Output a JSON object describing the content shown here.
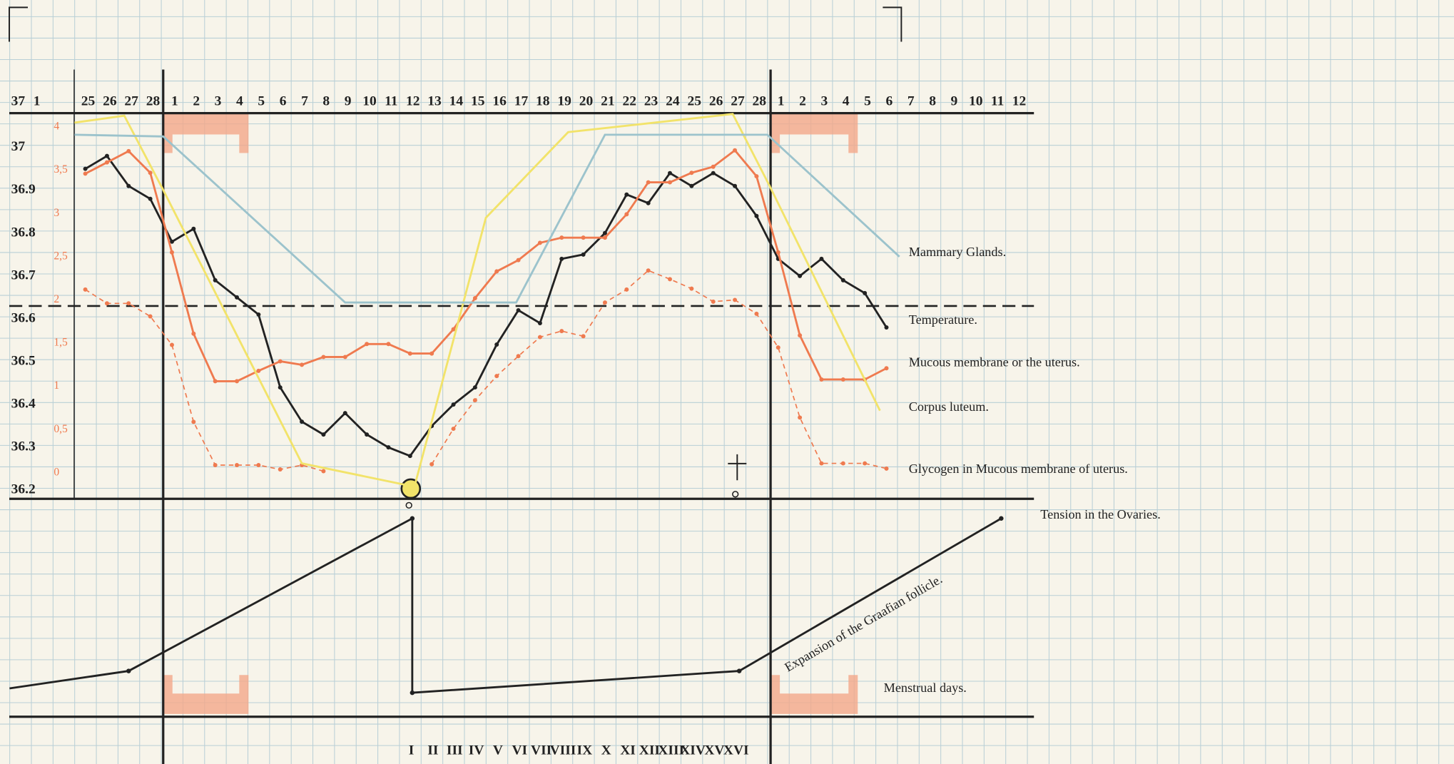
{
  "chart_data": [
    {
      "type": "line",
      "corner_labels": [
        "37",
        "1"
      ],
      "categories": [
        "25",
        "26",
        "27",
        "28",
        "1",
        "2",
        "3",
        "4",
        "5",
        "6",
        "7",
        "8",
        "9",
        "10",
        "11",
        "12",
        "13",
        "14",
        "15",
        "16",
        "17",
        "18",
        "19",
        "20",
        "21",
        "22",
        "23",
        "24",
        "25",
        "26",
        "27",
        "28",
        "1",
        "2",
        "3",
        "4",
        "5",
        "6",
        "7",
        "8",
        "9",
        "10",
        "11",
        "12"
      ],
      "ylim": [
        36.18,
        37.08
      ],
      "yticks": [
        37,
        36.9,
        36.8,
        36.7,
        36.6,
        36.5,
        36.4,
        36.3,
        36.2
      ],
      "y2lim": [
        -0.3,
        4.16
      ],
      "y2ticks": [
        4,
        {
          "value": 3.5,
          "label": "3,5"
        },
        3,
        {
          "value": 2.5,
          "label": "2,5"
        },
        2,
        {
          "value": 1.5,
          "label": "1,5"
        },
        1,
        {
          "value": 0.5,
          "label": "0,5"
        },
        0
      ],
      "hline": 36.63,
      "series": [
        {
          "name": "Temperature.",
          "color": "#222222",
          "markers": true,
          "values": [
            36.95,
            36.98,
            36.91,
            36.88,
            36.78,
            36.81,
            36.69,
            36.65,
            36.61,
            36.44,
            36.36,
            36.33,
            36.38,
            36.33,
            36.3,
            36.28,
            36.35,
            36.4,
            36.44,
            36.54,
            36.62,
            36.59,
            36.74,
            36.75,
            36.8,
            36.89,
            36.87,
            36.94,
            36.91,
            36.94,
            36.91,
            36.84,
            36.74,
            36.7,
            36.74,
            36.69,
            36.66,
            36.58,
            null,
            null,
            null,
            null,
            null,
            null
          ]
        },
        {
          "name": "Mucous membrane or the uterus.",
          "color": "#ef7a4f",
          "markers": true,
          "axis": "y2",
          "values": [
            3.46,
            3.59,
            3.72,
            3.47,
            2.55,
            1.61,
            1.06,
            1.06,
            1.18,
            1.29,
            1.25,
            1.34,
            1.34,
            1.49,
            1.49,
            1.38,
            1.38,
            1.66,
            2.02,
            2.33,
            2.46,
            2.66,
            2.72,
            2.72,
            2.72,
            2.99,
            3.36,
            3.36,
            3.47,
            3.54,
            3.73,
            3.43,
            2.55,
            1.59,
            1.08,
            1.08,
            1.08,
            1.21,
            null,
            null,
            null,
            null,
            null,
            null
          ]
        },
        {
          "name": "Glycogen in Mucous membrane of uterus.",
          "color": "#ef7a4f",
          "markers": true,
          "dashed": true,
          "axis": "y2",
          "values": [
            2.12,
            1.96,
            1.96,
            1.81,
            1.48,
            0.59,
            0.09,
            0.09,
            0.09,
            0.04,
            0.09,
            0.02,
            null,
            null,
            null,
            null,
            0.1,
            0.51,
            0.84,
            1.12,
            1.35,
            1.57,
            1.64,
            1.58,
            1.97,
            2.12,
            2.34,
            2.24,
            2.13,
            1.98,
            2.0,
            1.84,
            1.45,
            0.64,
            0.11,
            0.11,
            0.11,
            0.05,
            null,
            null,
            null,
            null,
            null,
            null
          ]
        },
        {
          "name": "Corpus luteum.",
          "color": "#f2e36a",
          "axis": "y2",
          "x": [
            -0.5,
            1.8,
            3.6,
            10.0,
            15.2,
            18.5,
            22.3,
            29.9,
            31.6,
            36.7
          ],
          "values": [
            4.05,
            4.13,
            3.27,
            0.11,
            -0.16,
            2.95,
            3.94,
            4.15,
            3.32,
            0.72
          ]
        },
        {
          "name": "Mammary Glands.",
          "color": "#9cc3cc",
          "axis": "y2",
          "x": [
            -0.5,
            3.6,
            12.0,
            19.9,
            24.0,
            31.5,
            37.6
          ],
          "values": [
            3.91,
            3.89,
            1.97,
            1.97,
            3.91,
            3.91,
            2.5
          ]
        }
      ]
    },
    {
      "type": "line",
      "ylim": [
        0,
        1
      ],
      "categories": [
        "I",
        "II",
        "III",
        "IV",
        "V",
        "VI",
        "VII",
        "VIII",
        "IX",
        "X",
        "XI",
        "XII",
        "XIII",
        "XIV",
        "XV",
        "XVI"
      ],
      "annotation": "Expansion of the Graafian follicle.",
      "band_label": "Menstrual days.",
      "series": [
        {
          "name": "Tension in the Ovaries.",
          "color": "#222222",
          "x": [
            -3.5,
            2.0,
            15.1,
            15.1,
            30.2,
            42.3
          ],
          "values": [
            0.13,
            0.21,
            0.91,
            0.11,
            0.21,
            0.91
          ]
        }
      ]
    }
  ]
}
